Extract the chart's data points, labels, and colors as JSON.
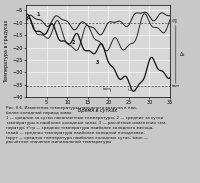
{
  "xlabel": "Время в сутках",
  "ylabel": "Температура в градусах",
  "xlim": [
    0,
    35
  ],
  "ylim": [
    -40,
    -3
  ],
  "xticks": [
    5,
    10,
    15,
    20,
    25,
    30,
    35
  ],
  "yticks": [
    -5,
    -10,
    -15,
    -20,
    -25,
    -30,
    -35,
    -40
  ],
  "t_gr": -10.0,
  "t_min": -35.5,
  "bg_color": "#d8d8d8",
  "grid_color": "#ffffff",
  "line_color": "#1a1a1a",
  "caption_lines": [
    "Рис. II.6. Изменения температуры наружного воздуха в наи-",
    "более холодный период зимы:",
    "1 — средние за сутки накопленные температуры; 2 — средние за сутки",
    "температуры в наиболее холодные зимы; 3 — расчётные изменения тем-",
    "ператур; t°гр — средняя температура наиболее холодного месяца;",
    "tнаиб — средняя температура наиболее холодной пятидневки;",
    "tкрут — средняя температура наиболее холодных суток; tмин —",
    "расчётное значение минимальной температуры"
  ]
}
